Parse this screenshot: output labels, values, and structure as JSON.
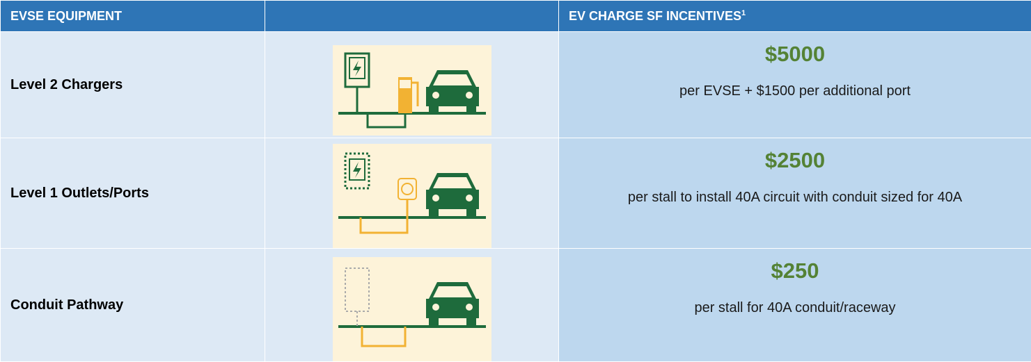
{
  "header": {
    "equipment": "EVSE EQUIPMENT",
    "incentives": "EV CHARGE SF INCENTIVES",
    "incentives_note": "1"
  },
  "rows": [
    {
      "equipment": "Level 2 Chargers",
      "amount": "$5000",
      "description": "per EVSE + $1500 per additional port"
    },
    {
      "equipment": "Level 1 Outlets/Ports",
      "amount": "$2500",
      "description": "per stall to install 40A circuit with conduit sized for 40A"
    },
    {
      "equipment": "Conduit Pathway",
      "amount": "$250",
      "description": "per stall for 40A conduit/raceway"
    }
  ]
}
